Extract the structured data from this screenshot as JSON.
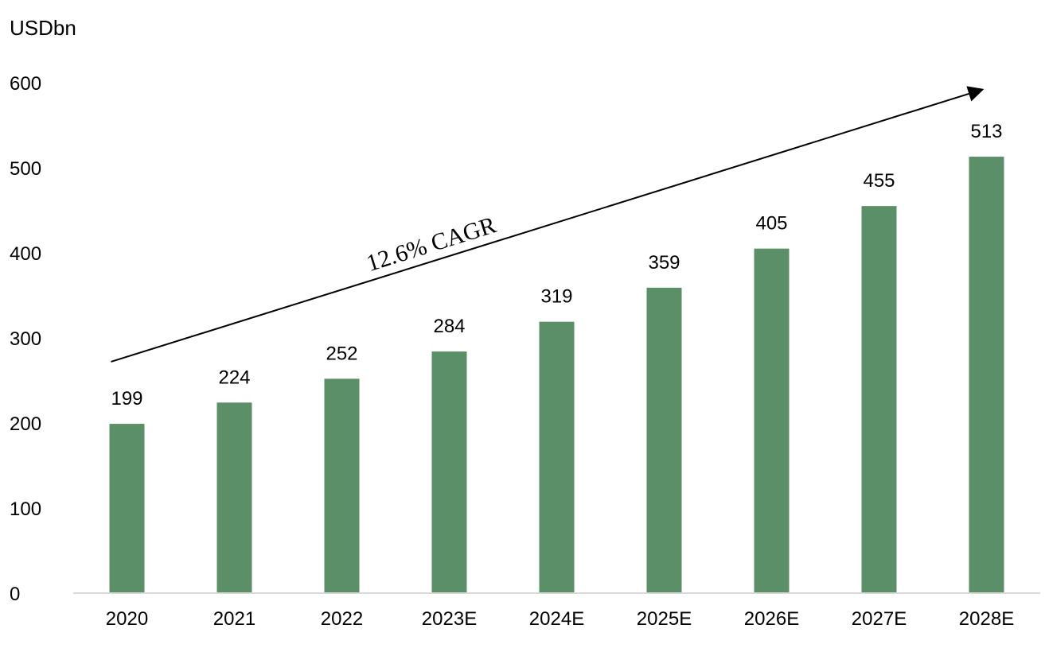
{
  "chart_data": {
    "type": "bar",
    "unit_label": "USDbn",
    "categories": [
      "2020",
      "2021",
      "2022",
      "2023E",
      "2024E",
      "2025E",
      "2026E",
      "2027E",
      "2028E"
    ],
    "values": [
      199,
      224,
      252,
      284,
      319,
      359,
      405,
      455,
      513
    ],
    "ylim": [
      0,
      600
    ],
    "yticks": [
      0,
      100,
      200,
      300,
      400,
      500,
      600
    ],
    "grid": false,
    "legend": "none",
    "bar_color": "#5a8f68",
    "annotation": {
      "text": "12.6% CAGR",
      "arrow_start": {
        "category": "2020",
        "value": 272
      },
      "arrow_end": {
        "category": "2028E",
        "value": 592
      }
    }
  }
}
